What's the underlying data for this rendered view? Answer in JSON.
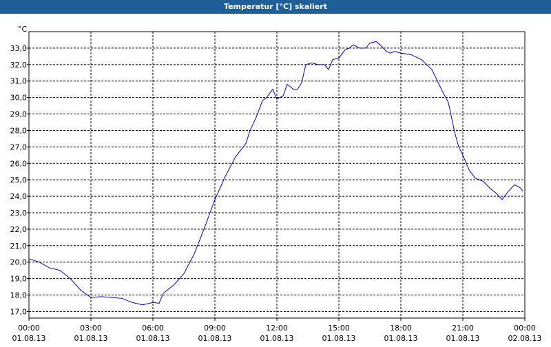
{
  "chart_data": {
    "type": "line",
    "title": "Temperatur [°C] skaliert",
    "y_unit": "°C",
    "x": [
      0,
      0.5,
      1,
      1.5,
      2,
      2.5,
      3,
      3.5,
      4,
      4.5,
      5,
      5.5,
      6,
      6.3,
      6.5,
      7,
      7.5,
      8,
      8.5,
      9,
      9.5,
      10,
      10.5,
      10.7,
      11,
      11.3,
      11.5,
      11.8,
      12,
      12.3,
      12.5,
      12.8,
      13,
      13.2,
      13.4,
      13.7,
      14,
      14.3,
      14.5,
      14.7,
      15,
      15.3,
      15.5,
      15.7,
      16,
      16.3,
      16.5,
      16.8,
      17,
      17.3,
      17.5,
      17.7,
      18,
      18.5,
      19,
      19.5,
      20,
      20.3,
      20.6,
      20.8,
      21,
      21.3,
      21.6,
      22,
      22.3,
      22.6,
      22.9,
      23.2,
      23.5,
      23.8,
      23.9
    ],
    "series": [
      {
        "name": "Temperatur",
        "color": "#0000cc",
        "values": [
          20.2,
          20.0,
          19.65,
          19.5,
          19.0,
          18.3,
          17.85,
          17.9,
          17.85,
          17.8,
          17.55,
          17.4,
          17.55,
          17.5,
          18.1,
          18.6,
          19.3,
          20.5,
          22.1,
          23.8,
          25.2,
          26.4,
          27.2,
          28.0,
          28.8,
          29.8,
          30.0,
          30.5,
          29.9,
          30.1,
          30.8,
          30.5,
          30.5,
          30.9,
          32.0,
          32.1,
          32.0,
          32.0,
          31.7,
          32.3,
          32.4,
          32.9,
          33.0,
          33.2,
          33.0,
          33.0,
          33.3,
          33.4,
          33.2,
          32.8,
          32.7,
          32.8,
          32.7,
          32.6,
          32.3,
          31.7,
          30.4,
          29.7,
          27.9,
          27.0,
          26.5,
          25.6,
          25.1,
          24.9,
          24.5,
          24.2,
          23.8,
          24.3,
          24.7,
          24.5,
          24.3
        ]
      }
    ],
    "xlim": [
      0,
      24
    ],
    "ylim": [
      16.6,
      34.0
    ],
    "xticks": [
      {
        "value": 0,
        "label": [
          "00:00",
          "01.08.13"
        ]
      },
      {
        "value": 3,
        "label": [
          "03:00",
          "01.08.13"
        ]
      },
      {
        "value": 6,
        "label": [
          "06:00",
          "01.08.13"
        ]
      },
      {
        "value": 9,
        "label": [
          "09:00",
          "01.08.13"
        ]
      },
      {
        "value": 12,
        "label": [
          "12:00",
          "01.08.13"
        ]
      },
      {
        "value": 15,
        "label": [
          "15:00",
          "01.08.13"
        ]
      },
      {
        "value": 18,
        "label": [
          "18:00",
          "01.08.13"
        ]
      },
      {
        "value": 21,
        "label": [
          "21:00",
          "01.08.13"
        ]
      },
      {
        "value": 24,
        "label": [
          "00:00",
          "02.08.13"
        ]
      }
    ],
    "yticks": [
      {
        "value": 17,
        "label": "17,0"
      },
      {
        "value": 18,
        "label": "18,0"
      },
      {
        "value": 19,
        "label": "19,0"
      },
      {
        "value": 20,
        "label": "20,0"
      },
      {
        "value": 21,
        "label": "21,0"
      },
      {
        "value": 22,
        "label": "22,0"
      },
      {
        "value": 23,
        "label": "23,0"
      },
      {
        "value": 24,
        "label": "24,0"
      },
      {
        "value": 25,
        "label": "25,0"
      },
      {
        "value": 26,
        "label": "26,0"
      },
      {
        "value": 27,
        "label": "27,0"
      },
      {
        "value": 28,
        "label": "28,0"
      },
      {
        "value": 29,
        "label": "29,0"
      },
      {
        "value": 30,
        "label": "30,0"
      },
      {
        "value": 31,
        "label": "31,0"
      },
      {
        "value": 32,
        "label": "32,0"
      },
      {
        "value": 33,
        "label": "33,0"
      }
    ],
    "grid": true
  }
}
